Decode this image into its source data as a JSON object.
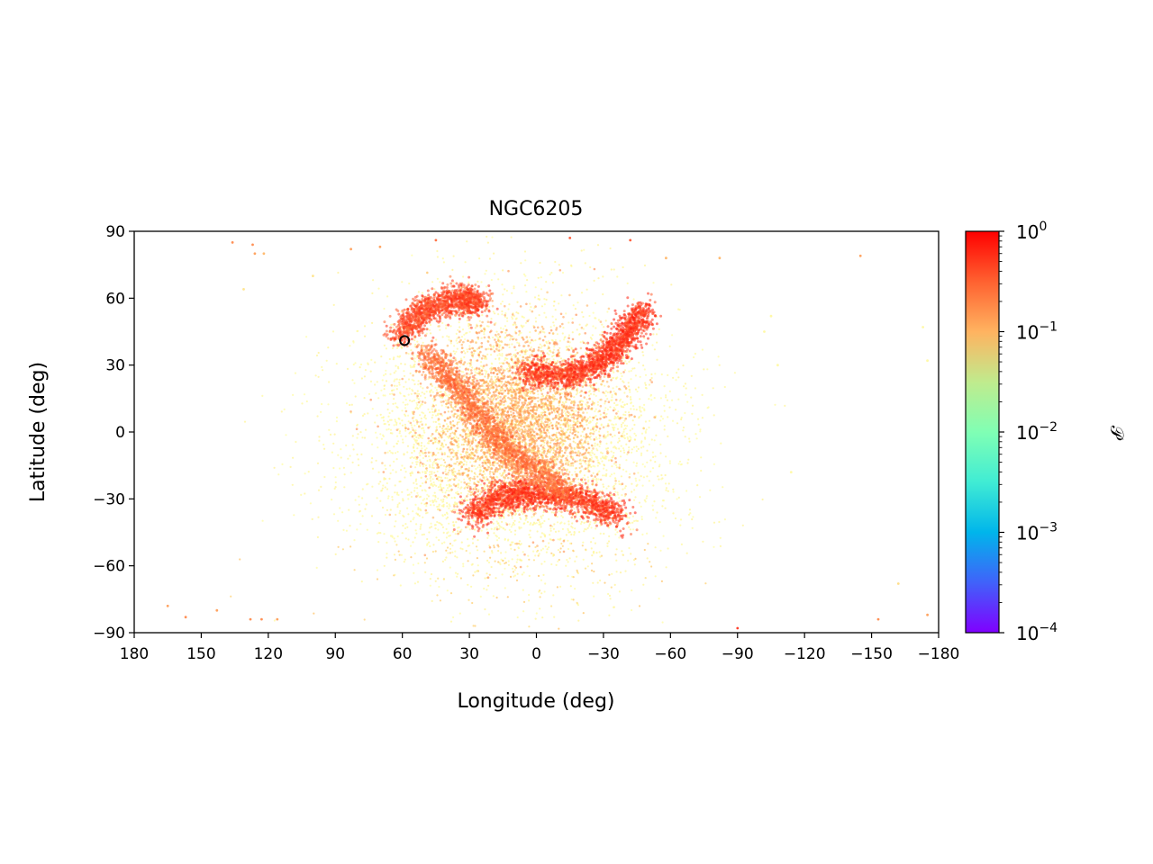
{
  "chart_data": {
    "type": "scatter",
    "title": "NGC6205",
    "xlabel": "Longitude (deg)",
    "ylabel": "Latitude (deg)",
    "xlim": [
      180,
      -180
    ],
    "ylim": [
      -90,
      90
    ],
    "x_reversed": true,
    "xticks": [
      180,
      150,
      120,
      90,
      60,
      30,
      0,
      -30,
      -60,
      -90,
      -120,
      -150,
      -180
    ],
    "xtick_labels": [
      "180",
      "150",
      "120",
      "90",
      "60",
      "30",
      "0",
      "−30",
      "−60",
      "−90",
      "−120",
      "−150",
      "−180"
    ],
    "yticks": [
      90,
      60,
      30,
      0,
      -30,
      -60,
      -90
    ],
    "ytick_labels": [
      "90",
      "60",
      "30",
      "0",
      "−30",
      "−60",
      "−90"
    ],
    "grid": false,
    "marker": {
      "x": 59,
      "y": 41,
      "style": "open black circle"
    },
    "colorbar": {
      "label": "𝒫",
      "scale": "log",
      "range": [
        0.0001,
        1
      ],
      "colormap": "rainbow",
      "ticks": [
        1,
        0.1,
        0.01,
        0.001,
        0.0001
      ],
      "tick_labels": [
        {
          "base": "10",
          "exp": "0"
        },
        {
          "base": "10",
          "exp": "−1"
        },
        {
          "base": "10",
          "exp": "−2"
        },
        {
          "base": "10",
          "exp": "−3"
        },
        {
          "base": "10",
          "exp": "−4"
        }
      ]
    },
    "density_features": [
      {
        "feature": "broad halo",
        "lon_range": [
          -70,
          90
        ],
        "lat_range": [
          -75,
          68
        ],
        "level": 0.02
      },
      {
        "feature": "upper-left stream",
        "path": [
          [
            62,
            43
          ],
          [
            50,
            55
          ],
          [
            35,
            60
          ],
          [
            25,
            58
          ]
        ],
        "level": 0.5
      },
      {
        "feature": "upper-right arc",
        "path": [
          [
            5,
            27
          ],
          [
            -15,
            25
          ],
          [
            -30,
            32
          ],
          [
            -40,
            43
          ],
          [
            -48,
            55
          ]
        ],
        "level": 0.6
      },
      {
        "feature": "lower arc",
        "path": [
          [
            30,
            -38
          ],
          [
            15,
            -28
          ],
          [
            0,
            -28
          ],
          [
            -20,
            -30
          ],
          [
            -38,
            -38
          ]
        ],
        "level": 0.6
      },
      {
        "feature": "central diagonal",
        "path": [
          [
            50,
            35
          ],
          [
            35,
            20
          ],
          [
            20,
            0
          ],
          [
            5,
            -15
          ],
          [
            -15,
            -28
          ]
        ],
        "level": 0.3
      }
    ],
    "outliers": [
      [
        136,
        85,
        0.2
      ],
      [
        127,
        84,
        0.2
      ],
      [
        126,
        80,
        0.15
      ],
      [
        83,
        82,
        0.15
      ],
      [
        70,
        83,
        0.15
      ],
      [
        45,
        86,
        0.3
      ],
      [
        -15,
        87,
        0.4
      ],
      [
        -42,
        86,
        0.4
      ],
      [
        -145,
        79,
        0.15
      ],
      [
        165,
        -78,
        0.15
      ],
      [
        157,
        -83,
        0.2
      ],
      [
        143,
        -80,
        0.15
      ],
      [
        128,
        -84,
        0.2
      ],
      [
        123,
        -84,
        0.2
      ],
      [
        116,
        -84,
        0.15
      ],
      [
        -90,
        -88,
        0.6
      ],
      [
        -153,
        -84,
        0.2
      ],
      [
        -175,
        -82,
        0.15
      ],
      [
        -162,
        -68,
        0.05
      ],
      [
        -173,
        47,
        0.02
      ],
      [
        -175,
        32,
        0.02
      ],
      [
        -105,
        52,
        0.02
      ],
      [
        -108,
        30,
        0.02
      ],
      [
        -114,
        -18,
        0.02
      ],
      [
        -102,
        45,
        0.02
      ],
      [
        131,
        64,
        0.04
      ],
      [
        122,
        80,
        0.1
      ],
      [
        100,
        70,
        0.04
      ],
      [
        -82,
        78,
        0.1
      ],
      [
        -58,
        78,
        0.1
      ]
    ]
  }
}
